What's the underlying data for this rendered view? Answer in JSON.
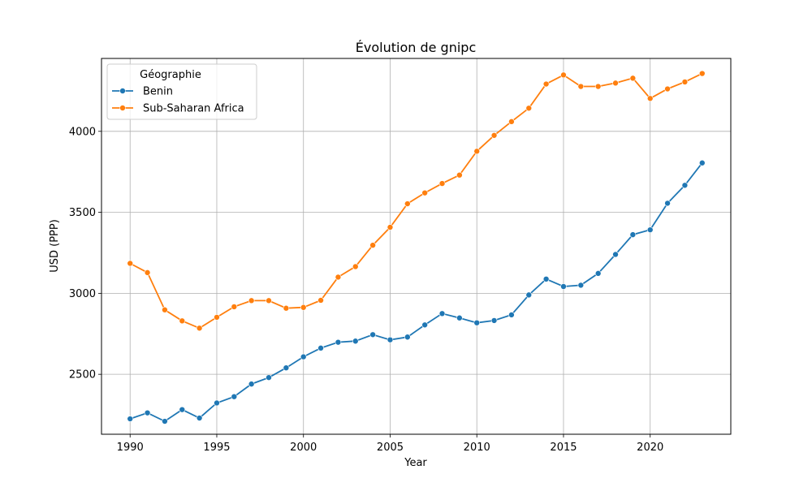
{
  "chart_data": {
    "type": "line",
    "title": "Évolution de gnipc",
    "xlabel": "Year",
    "ylabel": "USD (PPP)",
    "xlim": [
      1988.35,
      2024.65
    ],
    "ylim": [
      2130,
      4450
    ],
    "xticks": [
      1990,
      1995,
      2000,
      2005,
      2010,
      2015,
      2020
    ],
    "yticks": [
      2500,
      3000,
      3500,
      4000
    ],
    "grid": true,
    "legend": {
      "title": "Géographie",
      "placement": "top-left"
    },
    "x": [
      1990,
      1991,
      1992,
      1993,
      1994,
      1995,
      1996,
      1997,
      1998,
      1999,
      2000,
      2001,
      2002,
      2003,
      2004,
      2005,
      2006,
      2007,
      2008,
      2009,
      2010,
      2011,
      2012,
      2013,
      2014,
      2015,
      2016,
      2017,
      2018,
      2019,
      2020,
      2021,
      2022,
      2023
    ],
    "series": [
      {
        "name": "Benin",
        "color": "#1f77b4",
        "values": [
          2225,
          2262,
          2210,
          2282,
          2230,
          2323,
          2362,
          2440,
          2480,
          2540,
          2608,
          2662,
          2698,
          2705,
          2745,
          2713,
          2730,
          2805,
          2875,
          2848,
          2818,
          2832,
          2867,
          2990,
          3088,
          3042,
          3050,
          3123,
          3240,
          3362,
          3392,
          3556,
          3667,
          3805
        ]
      },
      {
        "name": "Sub-Saharan Africa",
        "color": "#ff7f0e",
        "values": [
          3185,
          3128,
          2898,
          2830,
          2785,
          2852,
          2917,
          2955,
          2955,
          2908,
          2913,
          2957,
          3100,
          3165,
          3297,
          3408,
          3553,
          3620,
          3678,
          3730,
          3877,
          3975,
          4060,
          4143,
          4292,
          4348,
          4277,
          4277,
          4298,
          4328,
          4203,
          4262,
          4305,
          4357
        ]
      }
    ]
  }
}
